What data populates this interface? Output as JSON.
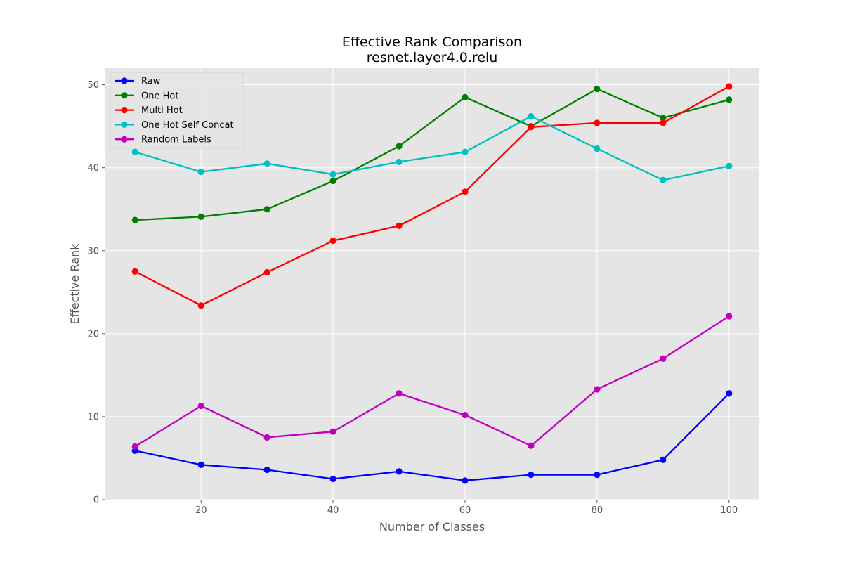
{
  "chart_data": {
    "type": "line",
    "title": "Effective Rank Comparison",
    "subtitle": "resnet.layer4.0.relu",
    "xlabel": "Number of Classes",
    "ylabel": "Effective Rank",
    "xlim": [
      5.5,
      104.5
    ],
    "ylim": [
      0,
      52
    ],
    "xticks": [
      20,
      40,
      60,
      80,
      100
    ],
    "yticks": [
      0,
      10,
      20,
      30,
      40,
      50
    ],
    "grid": true,
    "legend_position": "upper-left",
    "x": [
      10,
      20,
      30,
      40,
      50,
      60,
      70,
      80,
      90,
      100
    ],
    "series": [
      {
        "name": "Raw",
        "color": "#0000ff",
        "values": [
          5.9,
          4.2,
          3.6,
          2.5,
          3.4,
          2.3,
          3.0,
          3.0,
          4.8,
          12.8
        ]
      },
      {
        "name": "One Hot",
        "color": "#008000",
        "values": [
          33.7,
          34.1,
          35.0,
          38.4,
          42.6,
          48.5,
          45.0,
          49.5,
          46.0,
          48.2
        ]
      },
      {
        "name": "Multi Hot",
        "color": "#ff0000",
        "values": [
          27.5,
          23.4,
          27.4,
          31.2,
          33.0,
          37.1,
          44.9,
          45.4,
          45.4,
          49.8
        ]
      },
      {
        "name": "One Hot Self Concat",
        "color": "#00bfbf",
        "values": [
          41.9,
          39.5,
          40.5,
          39.2,
          40.7,
          41.9,
          46.2,
          42.3,
          38.5,
          40.2
        ]
      },
      {
        "name": "Random Labels",
        "color": "#bf00bf",
        "values": [
          6.4,
          11.3,
          7.5,
          8.2,
          12.8,
          10.2,
          6.5,
          13.3,
          17.0,
          22.1
        ]
      }
    ]
  }
}
